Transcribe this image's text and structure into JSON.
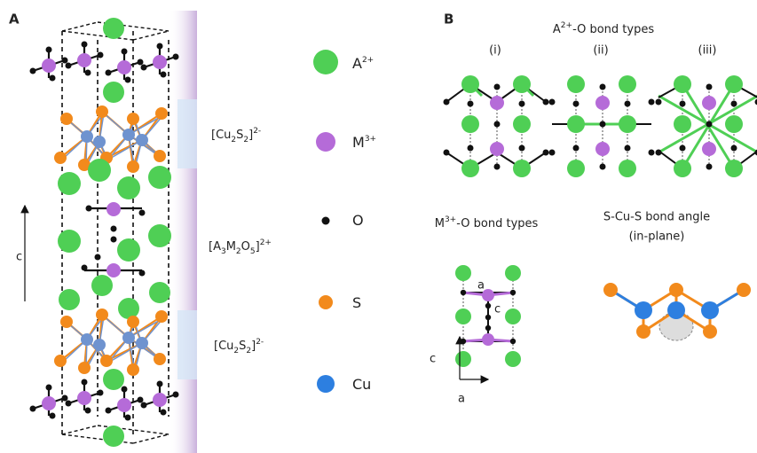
{
  "panel_a": {
    "label": "A",
    "axis_label": "c",
    "layer_labels": [
      [
        "[Cu",
        {
          "sub": "2"
        },
        "S",
        {
          "sub": "2"
        },
        "]",
        {
          "sup": "2-"
        }
      ],
      [
        "[A",
        {
          "sub": "3"
        },
        "M",
        {
          "sub": "2"
        },
        "O",
        {
          "sub": "5"
        },
        "]",
        {
          "sup": "2+"
        }
      ],
      [
        "[Cu",
        {
          "sub": "2"
        },
        "S",
        {
          "sub": "2"
        },
        "]",
        {
          "sup": "2-"
        }
      ]
    ]
  },
  "legend": [
    [
      "A",
      {
        "sup": "2+"
      }
    ],
    [
      "M",
      {
        "sup": "3+"
      }
    ],
    [
      "O"
    ],
    [
      "S"
    ],
    [
      "Cu"
    ]
  ],
  "panel_b": {
    "label": "B",
    "a_site_title": [
      "A",
      {
        "sup": "2+"
      },
      "-O bond types"
    ],
    "a_site_types": [
      "(i)",
      "(ii)",
      "(iii)"
    ],
    "m_site_title": [
      "M",
      {
        "sup": "3+"
      },
      "-O bond types"
    ],
    "m_site_labels": [
      "a",
      "c"
    ],
    "axes": [
      "c",
      "a"
    ],
    "angle_title": [
      "S-Cu-S bond angle",
      "(in-plane)"
    ]
  }
}
